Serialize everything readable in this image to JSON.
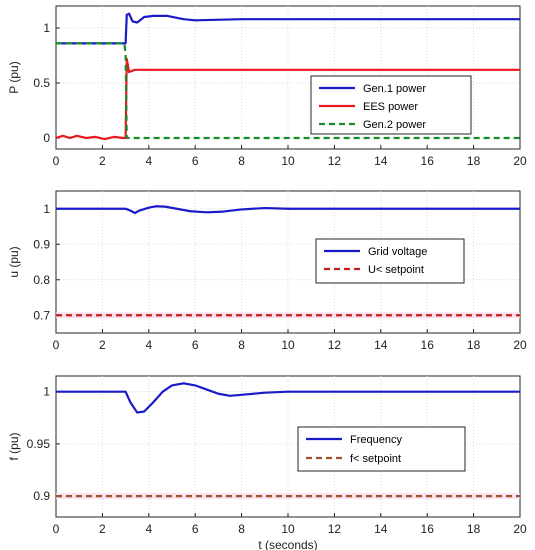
{
  "chart_data": [
    {
      "type": "line",
      "title": "",
      "xlabel": "",
      "ylabel": "P (pu)",
      "xlim": [
        0,
        20
      ],
      "ylim": [
        -0.1,
        1.2
      ],
      "xticks": [
        "0",
        "2",
        "4",
        "6",
        "8",
        "10",
        "12",
        "14",
        "16",
        "18",
        "20"
      ],
      "yticks": [
        "0",
        "0.5",
        "1"
      ],
      "grid": true,
      "legend_position": "center-right",
      "series": [
        {
          "name": "Gen.1 power",
          "color": "#1a1ac8",
          "dash": "solid",
          "x": [
            0,
            1,
            2,
            2.95,
            3.0,
            3.05,
            3.15,
            3.3,
            3.5,
            3.8,
            4.2,
            4.8,
            5.5,
            6.0,
            8,
            10,
            12,
            14,
            16,
            18,
            20
          ],
          "y": [
            0.86,
            0.86,
            0.86,
            0.86,
            0.86,
            1.12,
            1.13,
            1.06,
            1.05,
            1.1,
            1.11,
            1.11,
            1.08,
            1.07,
            1.08,
            1.08,
            1.08,
            1.08,
            1.08,
            1.08,
            1.08
          ]
        },
        {
          "name": "EES power",
          "color": "#e8191e",
          "dash": "solid",
          "x": [
            0,
            0.3,
            0.6,
            0.9,
            1.3,
            1.7,
            2.1,
            2.5,
            2.9,
            2.95,
            3.0,
            3.05,
            3.15,
            3.4,
            3.8,
            5,
            8,
            12,
            16,
            20
          ],
          "y": [
            0.0,
            0.02,
            0.0,
            0.02,
            0.0,
            0.01,
            -0.01,
            0.01,
            0.0,
            0.0,
            0.0,
            0.72,
            0.6,
            0.62,
            0.62,
            0.62,
            0.62,
            0.62,
            0.62,
            0.62
          ]
        },
        {
          "name": "Gen.2 power",
          "color": "#178c2a",
          "dash": "dashed",
          "x": [
            0,
            2.95,
            3.0,
            3.05,
            20
          ],
          "y": [
            0.86,
            0.86,
            0.75,
            0.0,
            0.0
          ]
        }
      ]
    },
    {
      "type": "line",
      "title": "",
      "xlabel": "",
      "ylabel": "u (pu)",
      "xlim": [
        0,
        20
      ],
      "ylim": [
        0.65,
        1.05
      ],
      "xticks": [
        "0",
        "2",
        "4",
        "6",
        "8",
        "10",
        "12",
        "14",
        "16",
        "18",
        "20"
      ],
      "yticks": [
        "0.7",
        "0.8",
        "0.9",
        "1"
      ],
      "grid": true,
      "legend_position": "center-right",
      "series": [
        {
          "name": "Grid voltage",
          "color": "#1a1ac8",
          "dash": "solid",
          "x": [
            0,
            1,
            2,
            3.0,
            3.2,
            3.4,
            3.6,
            4.0,
            4.3,
            4.7,
            5.2,
            5.8,
            6.5,
            7.2,
            8.0,
            9.0,
            10,
            12,
            14,
            16,
            18,
            20
          ],
          "y": [
            1.0,
            1.0,
            1.0,
            1.0,
            0.995,
            0.988,
            0.995,
            1.003,
            1.007,
            1.006,
            1.0,
            0.993,
            0.99,
            0.992,
            0.998,
            1.002,
            1.0,
            1.0,
            1.0,
            1.0,
            1.0,
            1.0
          ]
        },
        {
          "name": "U< setpoint",
          "color": "#c41e1e",
          "dash": "dashed",
          "x": [
            0,
            20
          ],
          "y": [
            0.7,
            0.7
          ]
        }
      ]
    },
    {
      "type": "line",
      "title": "",
      "xlabel": "t (seconds)",
      "ylabel": "f (pu)",
      "xlim": [
        0,
        20
      ],
      "ylim": [
        0.88,
        1.015
      ],
      "xticks": [
        "0",
        "2",
        "4",
        "6",
        "8",
        "10",
        "12",
        "14",
        "16",
        "18",
        "20"
      ],
      "yticks": [
        "0.9",
        "0.95",
        "1"
      ],
      "grid": true,
      "legend_position": "center-right",
      "series": [
        {
          "name": "Frequency",
          "color": "#1a1ac8",
          "dash": "solid",
          "x": [
            0,
            1,
            2,
            3.0,
            3.2,
            3.5,
            3.8,
            4.2,
            4.6,
            5.0,
            5.5,
            6.0,
            6.5,
            7.0,
            7.5,
            8.0,
            9.0,
            10,
            12,
            14,
            16,
            18,
            20
          ],
          "y": [
            1.0,
            1.0,
            1.0,
            1.0,
            0.99,
            0.98,
            0.981,
            0.99,
            1.0,
            1.006,
            1.008,
            1.006,
            1.002,
            0.998,
            0.996,
            0.997,
            0.999,
            1.0,
            1.0,
            1.0,
            1.0,
            1.0,
            1.0
          ]
        },
        {
          "name": "f< setpoint",
          "color": "#a0522d",
          "dash": "dashed",
          "x": [
            0,
            20
          ],
          "y": [
            0.9,
            0.9
          ]
        }
      ]
    }
  ]
}
